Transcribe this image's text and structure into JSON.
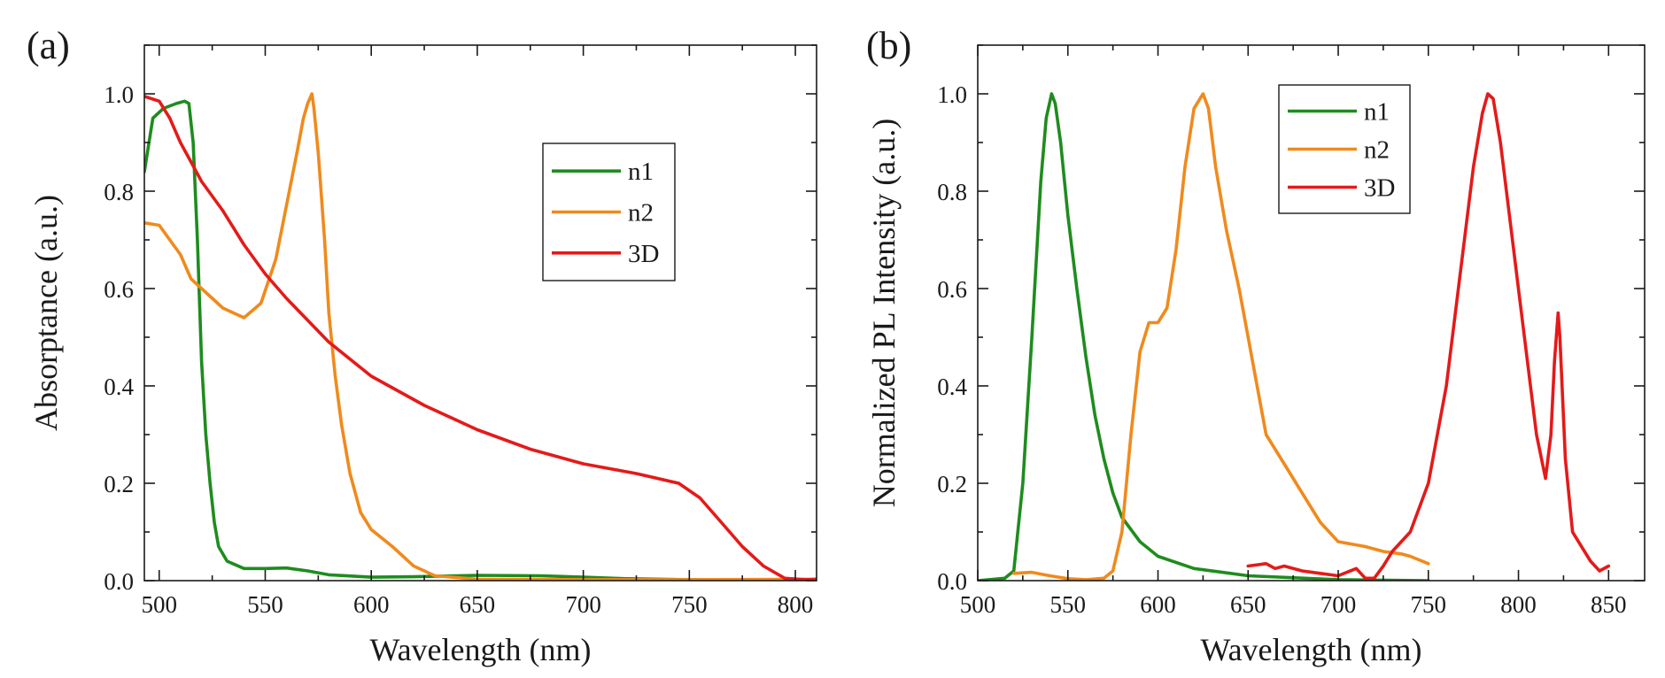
{
  "colors": {
    "n1": "#1e8c1e",
    "n2": "#f08a1c",
    "3D": "#e41a1a"
  },
  "chart_data": [
    {
      "type": "line",
      "panel_label": "(a)",
      "xlabel": "Wavelength (nm)",
      "ylabel": "Absorptance (a.u.)",
      "xlim": [
        493,
        810
      ],
      "ylim": [
        0,
        1.1
      ],
      "xticks": [
        500,
        550,
        600,
        650,
        700,
        750,
        800
      ],
      "xtick_labels": [
        "500",
        "550",
        "600",
        "650",
        "700",
        "750",
        "800"
      ],
      "yticks": [
        0.0,
        0.2,
        0.4,
        0.6,
        0.8,
        1.0
      ],
      "ytick_labels": [
        "0.0",
        "0.2",
        "0.4",
        "0.6",
        "0.8",
        "1.0"
      ],
      "legend_position": "upper-right",
      "series": [
        {
          "name": "n1",
          "color_key": "n1",
          "x": [
            493,
            497,
            502,
            508,
            512,
            514,
            516,
            518,
            520,
            522,
            524,
            526,
            528,
            532,
            540,
            550,
            560,
            570,
            580,
            600,
            620,
            650,
            680,
            700,
            720,
            750,
            780,
            810
          ],
          "y": [
            0.84,
            0.95,
            0.97,
            0.98,
            0.985,
            0.98,
            0.9,
            0.7,
            0.45,
            0.3,
            0.2,
            0.12,
            0.07,
            0.04,
            0.025,
            0.025,
            0.026,
            0.02,
            0.012,
            0.007,
            0.008,
            0.011,
            0.01,
            0.007,
            0.004,
            0.002,
            0.001,
            0.0
          ]
        },
        {
          "name": "n2",
          "color_key": "n2",
          "x": [
            493,
            500,
            505,
            510,
            515,
            520,
            530,
            540,
            548,
            555,
            560,
            565,
            568,
            570,
            571,
            572,
            573,
            575,
            578,
            580,
            583,
            586,
            590,
            595,
            600,
            610,
            620,
            630,
            650,
            700,
            750,
            810
          ],
          "y": [
            0.735,
            0.73,
            0.7,
            0.67,
            0.62,
            0.6,
            0.56,
            0.54,
            0.57,
            0.66,
            0.77,
            0.88,
            0.95,
            0.98,
            0.99,
            1.0,
            0.97,
            0.88,
            0.7,
            0.55,
            0.42,
            0.32,
            0.22,
            0.14,
            0.105,
            0.07,
            0.03,
            0.01,
            0.003,
            0.002,
            0.002,
            0.003
          ]
        },
        {
          "name": "3D",
          "color_key": "3D",
          "x": [
            493,
            500,
            505,
            510,
            515,
            520,
            530,
            540,
            550,
            560,
            580,
            600,
            625,
            650,
            675,
            700,
            725,
            745,
            755,
            765,
            775,
            785,
            795,
            805,
            810
          ],
          "y": [
            0.995,
            0.985,
            0.95,
            0.9,
            0.86,
            0.82,
            0.76,
            0.69,
            0.63,
            0.58,
            0.49,
            0.42,
            0.36,
            0.31,
            0.27,
            0.24,
            0.22,
            0.2,
            0.17,
            0.12,
            0.07,
            0.03,
            0.005,
            0.002,
            0.003
          ]
        }
      ]
    },
    {
      "type": "line",
      "panel_label": "(b)",
      "xlabel": "Wavelength (nm)",
      "ylabel": "Normalized PL Intensity (a.u.)",
      "xlim": [
        500,
        870
      ],
      "ylim": [
        0,
        1.1
      ],
      "xticks": [
        500,
        550,
        600,
        650,
        700,
        750,
        800,
        850
      ],
      "xtick_labels": [
        "500",
        "550",
        "600",
        "650",
        "700",
        "750",
        "800",
        "850"
      ],
      "yticks": [
        0.0,
        0.2,
        0.4,
        0.6,
        0.8,
        1.0
      ],
      "ytick_labels": [
        "0.0",
        "0.2",
        "0.4",
        "0.6",
        "0.8",
        "1.0"
      ],
      "legend_position": "upper-center",
      "series": [
        {
          "name": "n1",
          "color_key": "n1",
          "x": [
            500,
            515,
            520,
            525,
            530,
            535,
            538,
            541,
            543,
            546,
            550,
            555,
            560,
            565,
            570,
            575,
            580,
            590,
            600,
            620,
            650,
            700,
            750
          ],
          "y": [
            0.0,
            0.005,
            0.02,
            0.2,
            0.5,
            0.82,
            0.95,
            1.0,
            0.98,
            0.9,
            0.75,
            0.6,
            0.46,
            0.34,
            0.25,
            0.18,
            0.13,
            0.08,
            0.05,
            0.025,
            0.01,
            0.002,
            0.0
          ]
        },
        {
          "name": "n2",
          "color_key": "n2",
          "x": [
            520,
            530,
            540,
            550,
            560,
            570,
            575,
            580,
            585,
            590,
            595,
            600,
            605,
            610,
            615,
            620,
            625,
            628,
            632,
            638,
            645,
            650,
            655,
            660,
            670,
            680,
            690,
            700,
            715,
            725,
            735,
            740,
            750
          ],
          "y": [
            0.015,
            0.017,
            0.01,
            0.004,
            0.002,
            0.005,
            0.02,
            0.1,
            0.3,
            0.47,
            0.53,
            0.53,
            0.56,
            0.68,
            0.85,
            0.97,
            1.0,
            0.97,
            0.85,
            0.72,
            0.6,
            0.5,
            0.4,
            0.3,
            0.24,
            0.18,
            0.12,
            0.08,
            0.07,
            0.06,
            0.055,
            0.05,
            0.035
          ]
        },
        {
          "name": "3D",
          "color_key": "3D",
          "x": [
            650,
            660,
            665,
            670,
            680,
            690,
            700,
            710,
            715,
            720,
            725,
            730,
            740,
            750,
            760,
            770,
            775,
            780,
            783,
            786,
            790,
            800,
            810,
            815,
            818,
            820,
            822,
            823,
            826,
            830,
            840,
            845,
            850
          ],
          "y": [
            0.03,
            0.035,
            0.025,
            0.03,
            0.02,
            0.015,
            0.01,
            0.025,
            0.005,
            0.005,
            0.03,
            0.06,
            0.1,
            0.2,
            0.4,
            0.7,
            0.85,
            0.96,
            1.0,
            0.99,
            0.9,
            0.6,
            0.3,
            0.21,
            0.3,
            0.45,
            0.55,
            0.5,
            0.25,
            0.1,
            0.04,
            0.02,
            0.03
          ]
        }
      ]
    }
  ]
}
